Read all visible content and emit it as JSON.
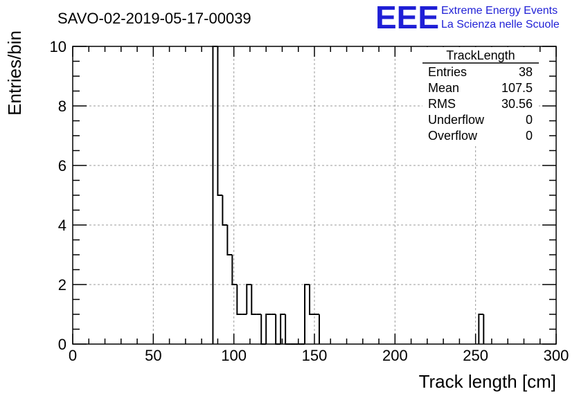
{
  "run_title": "SAVO-02-2019-05-17-00039",
  "logo": {
    "letters": "EEE",
    "line1": "Extreme Energy Events",
    "line2": "La Scienza nelle Scuole",
    "color": "#1f1fd6"
  },
  "stats_box": {
    "title": "TrackLength",
    "rows": [
      {
        "label": "Entries",
        "value": "38"
      },
      {
        "label": "Mean",
        "value": "107.5"
      },
      {
        "label": "RMS",
        "value": "30.56"
      },
      {
        "label": "Underflow",
        "value": "0"
      },
      {
        "label": "Overflow",
        "value": "0"
      }
    ]
  },
  "chart_data": {
    "type": "histogram",
    "xlabel": "Track length [cm]",
    "ylabel": "Entries/bin",
    "xlim": [
      0,
      300
    ],
    "ylim": [
      0,
      10
    ],
    "x_ticks": [
      "0",
      "50",
      "100",
      "150",
      "200",
      "250",
      "300"
    ],
    "y_ticks": [
      "0",
      "2",
      "4",
      "6",
      "8",
      "10"
    ],
    "grid": true,
    "bin_width": 3,
    "bins": [
      {
        "x0": 87,
        "count": 10
      },
      {
        "x0": 90,
        "count": 5
      },
      {
        "x0": 93,
        "count": 4
      },
      {
        "x0": 96,
        "count": 3
      },
      {
        "x0": 99,
        "count": 2
      },
      {
        "x0": 102,
        "count": 1
      },
      {
        "x0": 105,
        "count": 1
      },
      {
        "x0": 108,
        "count": 2
      },
      {
        "x0": 111,
        "count": 1
      },
      {
        "x0": 114,
        "count": 1
      },
      {
        "x0": 117,
        "count": 0
      },
      {
        "x0": 120,
        "count": 1
      },
      {
        "x0": 123,
        "count": 1
      },
      {
        "x0": 126,
        "count": 0
      },
      {
        "x0": 129,
        "count": 1
      },
      {
        "x0": 132,
        "count": 0
      },
      {
        "x0": 135,
        "count": 0
      },
      {
        "x0": 138,
        "count": 0
      },
      {
        "x0": 141,
        "count": 0
      },
      {
        "x0": 144,
        "count": 2
      },
      {
        "x0": 147,
        "count": 1
      },
      {
        "x0": 150,
        "count": 1
      },
      {
        "x0": 252,
        "count": 1
      }
    ]
  }
}
